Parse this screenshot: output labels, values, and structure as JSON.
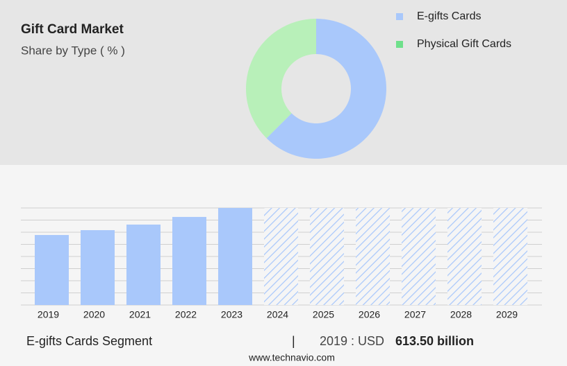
{
  "header": {
    "title": "Gift Card Market",
    "subtitle": "Share by Type ( % )"
  },
  "chart_data": [
    {
      "type": "donut",
      "categories": [
        "E-gifts Cards",
        "Physical Gift Cards"
      ],
      "values": [
        62.5,
        37.5
      ],
      "colors": [
        "#a9c8fb",
        "#b8f0b9"
      ],
      "legend_colors": [
        "#a9c8fb",
        "#6fe08b"
      ]
    },
    {
      "type": "bar",
      "categories": [
        "2019",
        "2020",
        "2021",
        "2022",
        "2023",
        "2024",
        "2025",
        "2026",
        "2027",
        "2028",
        "2029"
      ],
      "values": [
        5.77,
        6.17,
        6.63,
        7.26,
        8,
        null,
        null,
        null,
        null,
        null,
        null
      ],
      "color": "#a9c8fb",
      "ylim": [
        0,
        8
      ],
      "yticks": [
        0,
        1,
        2,
        3,
        4,
        5,
        6,
        7,
        8
      ],
      "grid": true
    }
  ],
  "footer": {
    "segment": "E-gifts Cards Segment",
    "separator": "|",
    "year_label": "2019 : USD",
    "value": "613.50 billion",
    "source": "www.technavio.com"
  }
}
